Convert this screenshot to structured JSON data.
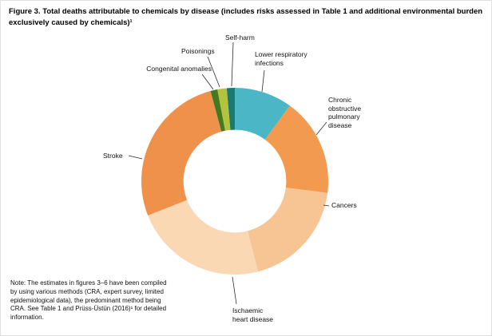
{
  "figure": {
    "title": "Figure 3. Total deaths attributable to chemicals by disease (includes risks assessed in Table 1 and additional environmental burden exclusively caused by chemicals)¹",
    "note": "Note: The estimates in figures 3–6 have been compiled by using various methods (CRA, expert survey, limited epidemiological data), the predominant method being CRA. See Table 1 and Prüss-Üstün (2016)¹ for detailed information."
  },
  "chart_data": {
    "type": "pie",
    "subtype": "donut",
    "title": "Total deaths attributable to chemicals by disease",
    "legend_position": "callout-labels",
    "units": "share of total deaths (percent, estimated from arc angles)",
    "start_angle_deg": -5,
    "inner_radius_ratio": 0.55,
    "segments": [
      {
        "label": "Self-harm",
        "value": 1.4,
        "color": "#1b7a70"
      },
      {
        "label": "Lower respiratory infections",
        "value": 10.0,
        "color": "#4bb7c6"
      },
      {
        "label": "Chronic obstructive pulmonary disease",
        "value": 17.0,
        "color": "#f19a50"
      },
      {
        "label": "Cancers",
        "value": 19.0,
        "color": "#f7c493"
      },
      {
        "label": "Ischaemic heart disease",
        "value": 23.0,
        "color": "#fad8b4"
      },
      {
        "label": "Stroke",
        "value": 26.8,
        "color": "#f0914b"
      },
      {
        "label": "Congenital anomalies",
        "value": 1.2,
        "color": "#44791f"
      },
      {
        "label": "Poisonings",
        "value": 1.6,
        "color": "#b3c43c"
      }
    ]
  }
}
